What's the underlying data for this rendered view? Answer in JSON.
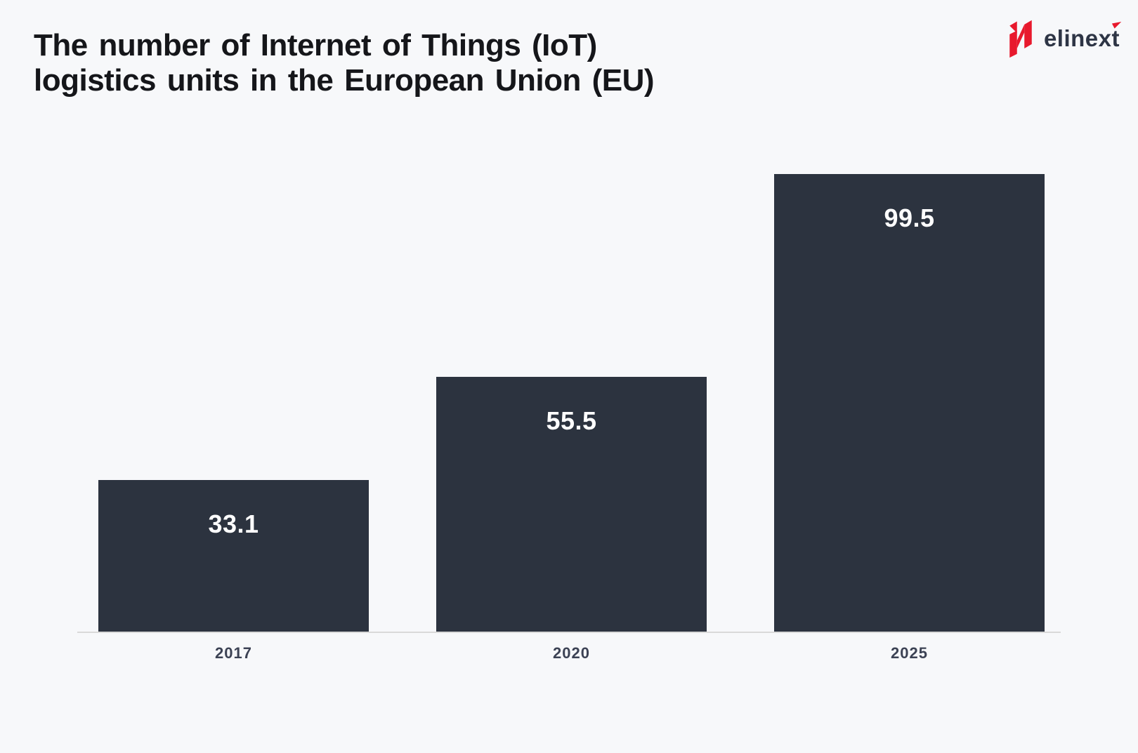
{
  "page": {
    "background_color": "#f7f8fa"
  },
  "header": {
    "title_line1": "The number of Internet of Things (IoT)",
    "title_line2": "logistics units in the European Union (EU)"
  },
  "logo": {
    "text": "elinext",
    "mark_color": "#e8192d",
    "text_color": "#2e3545"
  },
  "chart_data": {
    "type": "bar",
    "title": "The number of Internet of Things (IoT) logistics units in the European Union (EU)",
    "categories": [
      "2017",
      "2020",
      "2025"
    ],
    "values": [
      33.1,
      55.5,
      99.5
    ],
    "xlabel": "",
    "ylabel": "",
    "ylim": [
      0,
      99.5
    ],
    "grid": false,
    "legend": false,
    "bar_color": "#2c333f",
    "value_label_color": "#ffffff",
    "category_label_color": "#3c4254",
    "axis_line_color": "#d9d9d9",
    "value_labels_inside_bars": true
  }
}
